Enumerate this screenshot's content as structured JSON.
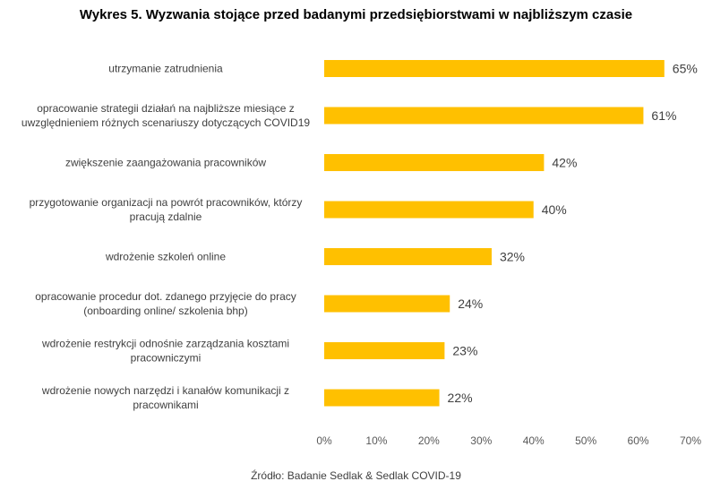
{
  "chart_data": {
    "type": "bar",
    "orientation": "horizontal",
    "title": "Wykres 5. Wyzwania stojące przed badanymi przedsiębiorstwami w najbliższym czasie",
    "categories": [
      [
        "utrzymanie zatrudnienia"
      ],
      [
        "opracowanie strategii działań na najbliższe miesiące z",
        "uwzględnieniem różnych scenariuszy dotyczących COVID19"
      ],
      [
        "zwiększenie zaangażowania pracowników"
      ],
      [
        "przygotowanie organizacji na powrót pracowników, którzy",
        "pracują zdalnie"
      ],
      [
        "wdrożenie szkoleń online"
      ],
      [
        "opracowanie procedur dot. zdanego przyjęcie do pracy",
        "(onboarding online/ szkolenia bhp)"
      ],
      [
        "wdrożenie restrykcji odnośnie zarządzania kosztami",
        "pracowniczymi"
      ],
      [
        "wdrożenie nowych narzędzi i kanałów  komunikacji z",
        "pracownikami"
      ]
    ],
    "values": [
      65,
      61,
      42,
      40,
      32,
      24,
      23,
      22
    ],
    "value_labels": [
      "65%",
      "61%",
      "42%",
      "40%",
      "32%",
      "24%",
      "23%",
      "22%"
    ],
    "x_ticks": [
      0,
      10,
      20,
      30,
      40,
      50,
      60,
      70
    ],
    "x_tick_labels": [
      "0%",
      "10%",
      "20%",
      "30%",
      "40%",
      "50%",
      "60%",
      "70%"
    ],
    "xlim": [
      0,
      70
    ],
    "xlabel": "",
    "ylabel": "",
    "grid": false,
    "legend": "none",
    "bar_color": "#FFC000"
  },
  "source": "Źródło: Badanie Sedlak & Sedlak COVID-19"
}
